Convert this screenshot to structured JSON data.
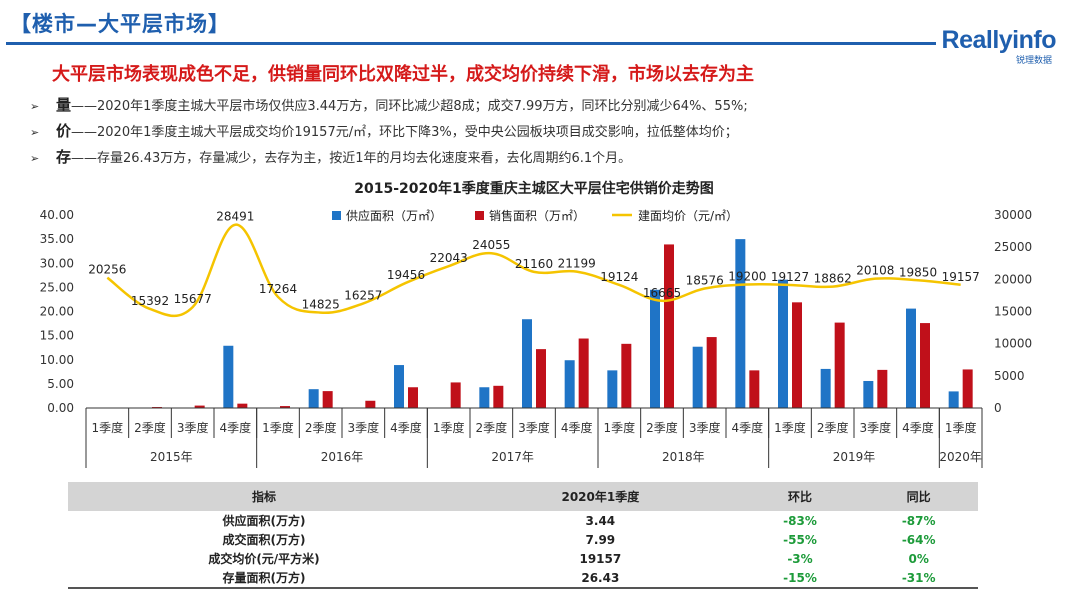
{
  "header": {
    "title": "【楼市—大平层市场】",
    "headline": "大平层市场表现成色不足，供销量同环比双降过半，成交均价持续下滑，市场以去存为主"
  },
  "logo": {
    "name": "Reallyinfo",
    "subtitle": "锐理数据"
  },
  "bullets": [
    {
      "marker": "➢",
      "key": "量",
      "text": "——2020年1季度主城大平层市场仅供应3.44万方，同环比减少超8成；成交7.99万方，同环比分别减少64%、55%;"
    },
    {
      "marker": "➢",
      "key": "价",
      "text": "——2020年1季度主城大平层成交均价19157元/㎡，环比下降3%，受中央公园板块项目成交影响，拉低整体均价；"
    },
    {
      "marker": "➢",
      "key": "存",
      "text": "——存量26.43万方，存量减少，去存为主，按近1年的月均去化速度来看，去化周期约6.1个月。"
    }
  ],
  "chart_data": {
    "type": "bar",
    "title": "2015-2020年1季度重庆主城区大平层住宅供销价走势图",
    "categories": [
      "1季度",
      "2季度",
      "3季度",
      "4季度",
      "1季度",
      "2季度",
      "3季度",
      "4季度",
      "1季度",
      "2季度",
      "3季度",
      "4季度",
      "1季度",
      "2季度",
      "3季度",
      "4季度",
      "1季度",
      "2季度",
      "3季度",
      "4季度",
      "1季度"
    ],
    "groups": [
      {
        "label": "2015年",
        "count": 4
      },
      {
        "label": "2016年",
        "count": 4
      },
      {
        "label": "2017年",
        "count": 4
      },
      {
        "label": "2018年",
        "count": 4
      },
      {
        "label": "2019年",
        "count": 4
      },
      {
        "label": "2020年",
        "count": 1
      }
    ],
    "series": [
      {
        "name": "供应面积（万㎡）",
        "type": "bar",
        "axis": "left",
        "color": "#1f74c6",
        "values": [
          0,
          0,
          0,
          12.9,
          0,
          3.9,
          0,
          8.9,
          0,
          4.3,
          18.4,
          9.9,
          7.8,
          24.5,
          12.7,
          35.0,
          26.6,
          8.1,
          5.6,
          20.6,
          3.44
        ]
      },
      {
        "name": "销售面积（万㎡）",
        "type": "bar",
        "axis": "left",
        "color": "#c0101a",
        "values": [
          0.1,
          0.2,
          0.5,
          0.9,
          0.4,
          3.5,
          1.5,
          4.3,
          5.3,
          4.6,
          12.2,
          14.4,
          13.3,
          33.9,
          14.7,
          7.8,
          21.9,
          17.7,
          7.9,
          17.6,
          7.99
        ]
      },
      {
        "name": "建面均价（元/㎡）",
        "type": "line",
        "axis": "right",
        "color": "#f5c400",
        "values": [
          20256,
          15392,
          15677,
          28491,
          17264,
          14825,
          16257,
          19456,
          22043,
          24055,
          21160,
          21199,
          19124,
          16665,
          18576,
          19200,
          19127,
          18862,
          20108,
          19850,
          19157
        ]
      }
    ],
    "y_left": {
      "min": 0,
      "max": 40,
      "step": 5,
      "ticks": [
        "0.00",
        "5.00",
        "10.00",
        "15.00",
        "20.00",
        "25.00",
        "30.00",
        "35.00",
        "40.00"
      ]
    },
    "y_right": {
      "min": 0,
      "max": 30000,
      "step": 5000,
      "ticks": [
        "0",
        "5000",
        "10000",
        "15000",
        "20000",
        "25000",
        "30000"
      ]
    },
    "legend_position": "top-center",
    "grid": false
  },
  "table": {
    "headers": [
      "指标",
      "2020年1季度",
      "环比",
      "同比"
    ],
    "rows": [
      {
        "label": "供应面积(万方)",
        "value": "3.44",
        "qoq": "-83%",
        "yoy": "-87%"
      },
      {
        "label": "成交面积(万方)",
        "value": "7.99",
        "qoq": "-55%",
        "yoy": "-64%"
      },
      {
        "label": "成交均价(元/平方米)",
        "value": "19157",
        "qoq": "-3%",
        "yoy": "0%"
      },
      {
        "label": "存量面积(万方)",
        "value": "26.43",
        "qoq": "-15%",
        "yoy": "-31%"
      }
    ]
  }
}
